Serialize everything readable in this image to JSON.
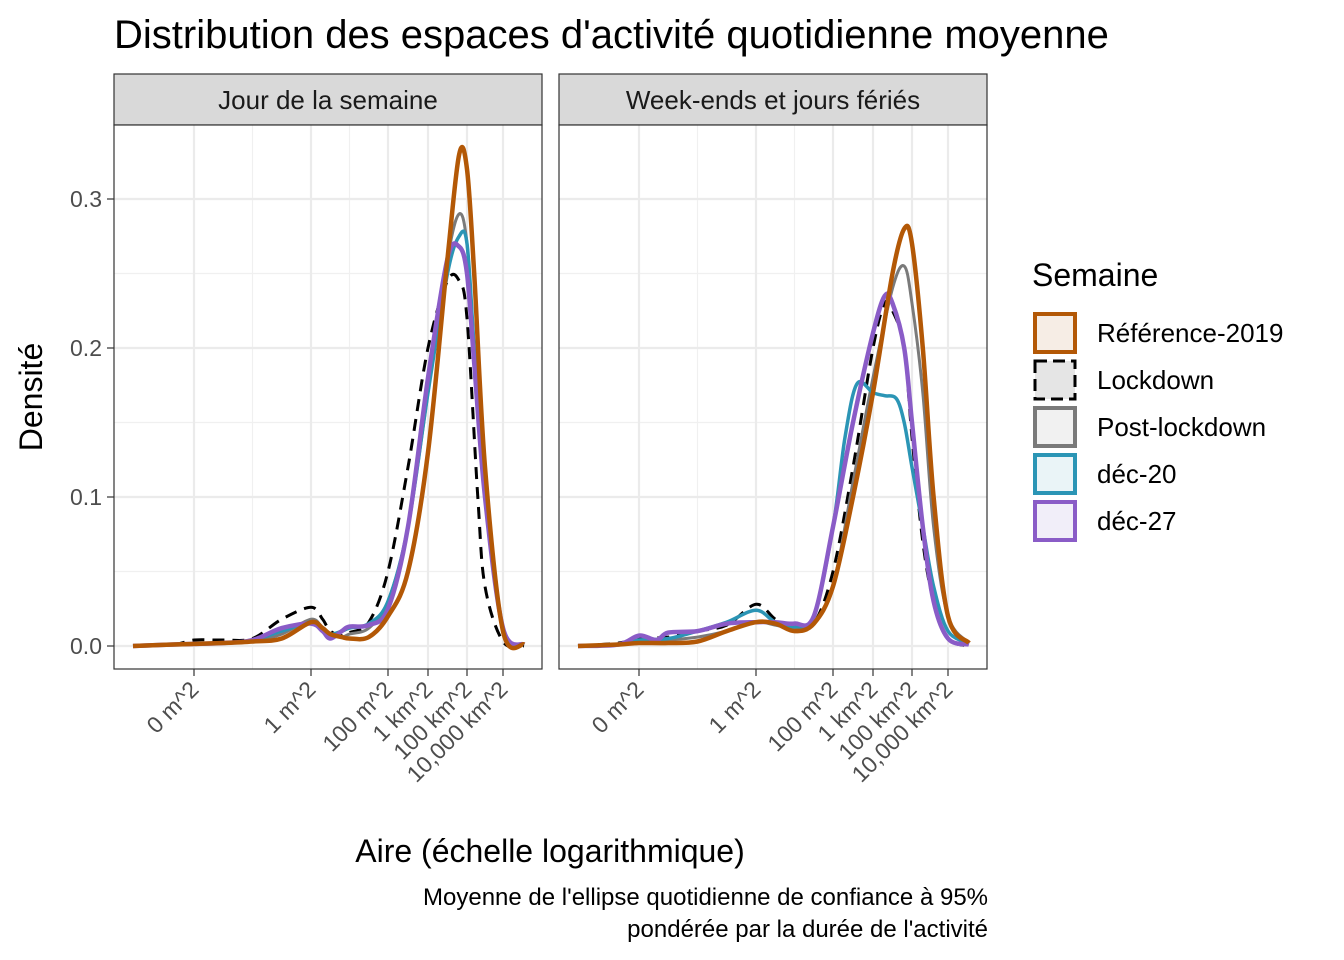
{
  "title": "Distribution des espaces d'activité quotidienne moyenne",
  "xlabel": "Aire (échelle logarithmique)",
  "ylabel": "Densité",
  "caption": [
    "Moyenne de l'ellipse quotidienne de confiance à 95%",
    "pondérée par la durée de l'activité"
  ],
  "legend_title": "Semaine",
  "colors": {
    "Référence-2019": "#b35806",
    "Lockdown": "#000000",
    "Post-lockdown": "#7a7a7a",
    "déc-20": "#2b95b5",
    "déc-27": "#8a5cc7"
  },
  "chart_data": {
    "type": "line",
    "x_scale": "log10",
    "x_unit": "m^2",
    "xlim_log10": [
      -3.5,
      8.2
    ],
    "ylim": [
      0,
      0.35
    ],
    "grid": true,
    "legend_position": "right",
    "x_ticks": [
      {
        "value_log10": -2,
        "label": "0 m^2"
      },
      {
        "value_log10": 0,
        "label": "1 m^2"
      },
      {
        "value_log10": 2,
        "label": "100 m^2"
      },
      {
        "value_log10": 3,
        "label": "1 km^2"
      },
      {
        "value_log10": 4,
        "label": "100 km^2"
      },
      {
        "value_log10": 5,
        "label": "10,000 km^2"
      }
    ],
    "y_ticks": [
      0.0,
      0.1,
      0.2,
      0.3
    ],
    "y_tick_labels": [
      "0.0",
      "0.1",
      "0.2",
      "0.3"
    ],
    "x_tick_positions": [
      -2,
      0,
      2,
      3,
      4,
      5
    ],
    "panels": [
      {
        "label": "Jour de la semaine",
        "series": [
          {
            "name": "Référence-2019",
            "dash": false,
            "width": 4.5,
            "x": [
              -3.5,
              -2.5,
              -1.5,
              -1,
              -0.5,
              0,
              0.3,
              0.5,
              0.8,
              1,
              1.5,
              2,
              2.5,
              3,
              3.5,
              3.8,
              4,
              4.2,
              4.5,
              5,
              5.3
            ],
            "y": [
              0,
              0.001,
              0.002,
              0.003,
              0.005,
              0.016,
              0.012,
              0.008,
              0.006,
              0.005,
              0.006,
              0.02,
              0.05,
              0.13,
              0.26,
              0.33,
              0.32,
              0.25,
              0.12,
              0.01,
              0.001
            ]
          },
          {
            "name": "Lockdown",
            "dash": true,
            "width": 3,
            "x": [
              -3.5,
              -2.5,
              -2,
              -1.5,
              -1,
              -0.5,
              0,
              0.3,
              0.5,
              0.8,
              1,
              1.5,
              2,
              2.5,
              3,
              3.5,
              3.8,
              4,
              4.3,
              4.5,
              5,
              5.3
            ],
            "y": [
              0,
              0.001,
              0.004,
              0.004,
              0.005,
              0.018,
              0.026,
              0.018,
              0.01,
              0.007,
              0.009,
              0.016,
              0.05,
              0.12,
              0.2,
              0.245,
              0.245,
              0.22,
              0.1,
              0.04,
              0.003,
              0
            ]
          },
          {
            "name": "Post-lockdown",
            "dash": false,
            "width": 3,
            "x": [
              -3.5,
              -2.5,
              -1.5,
              -1,
              -0.5,
              0,
              0.3,
              0.5,
              0.8,
              1,
              1.5,
              2,
              2.5,
              3,
              3.5,
              3.8,
              4,
              4.2,
              4.5,
              5,
              5.3
            ],
            "y": [
              0,
              0.001,
              0.002,
              0.003,
              0.008,
              0.018,
              0.012,
              0.008,
              0.006,
              0.008,
              0.012,
              0.03,
              0.08,
              0.17,
              0.26,
              0.29,
              0.27,
              0.2,
              0.1,
              0.01,
              0.001
            ]
          },
          {
            "name": "déc-20",
            "dash": false,
            "width": 3.5,
            "x": [
              -3.5,
              -2.5,
              -1.5,
              -1,
              -0.5,
              0,
              0.3,
              0.5,
              0.8,
              1,
              1.5,
              2,
              2.5,
              3,
              3.5,
              3.8,
              4,
              4.2,
              4.5,
              5,
              5.3
            ],
            "y": [
              0,
              0.001,
              0.002,
              0.004,
              0.01,
              0.016,
              0.012,
              0.008,
              0.01,
              0.012,
              0.015,
              0.03,
              0.08,
              0.17,
              0.25,
              0.275,
              0.27,
              0.2,
              0.1,
              0.012,
              0.001
            ]
          },
          {
            "name": "déc-27",
            "dash": false,
            "width": 4.5,
            "x": [
              -3.5,
              -2.5,
              -1.5,
              -1,
              -0.5,
              0,
              0.3,
              0.5,
              0.8,
              1,
              1.5,
              2,
              2.5,
              3,
              3.5,
              3.8,
              4,
              4.2,
              4.5,
              5,
              5.3
            ],
            "y": [
              0,
              0.001,
              0.002,
              0.004,
              0.012,
              0.015,
              0.01,
              0.005,
              0.01,
              0.013,
              0.014,
              0.025,
              0.08,
              0.18,
              0.26,
              0.268,
              0.25,
              0.19,
              0.1,
              0.012,
              0.001
            ]
          }
        ]
      },
      {
        "label": "Week-ends et jours fériés",
        "series": [
          {
            "name": "Référence-2019",
            "dash": false,
            "width": 4.5,
            "x": [
              -3.5,
              -2.5,
              -2,
              -1.5,
              -1,
              -0.5,
              0,
              0.5,
              1,
              1.5,
              2,
              2.5,
              3,
              3.5,
              3.8,
              4,
              4.3,
              4.6,
              5,
              5.3
            ],
            "y": [
              0,
              0.001,
              0.002,
              0.002,
              0.003,
              0.01,
              0.016,
              0.015,
              0.01,
              0.015,
              0.04,
              0.1,
              0.17,
              0.25,
              0.28,
              0.27,
              0.2,
              0.1,
              0.02,
              0.002
            ]
          },
          {
            "name": "Lockdown",
            "dash": true,
            "width": 3,
            "x": [
              -3.5,
              -2.5,
              -2,
              -1.5,
              -1,
              -0.5,
              0,
              0.5,
              1,
              1.5,
              2,
              2.5,
              3,
              3.3,
              3.5,
              3.8,
              4,
              4.3,
              4.6,
              5,
              5.3
            ],
            "y": [
              0,
              0.002,
              0.005,
              0.006,
              0.01,
              0.014,
              0.028,
              0.018,
              0.012,
              0.015,
              0.05,
              0.12,
              0.2,
              0.23,
              0.225,
              0.2,
              0.14,
              0.07,
              0.03,
              0.005,
              0
            ]
          },
          {
            "name": "Post-lockdown",
            "dash": false,
            "width": 3,
            "x": [
              -3.5,
              -2.5,
              -2,
              -1.5,
              -1,
              -0.5,
              0,
              0.5,
              1,
              1.5,
              2,
              2.5,
              3,
              3.5,
              3.8,
              4,
              4.3,
              4.6,
              5,
              5.3
            ],
            "y": [
              0,
              0.001,
              0.003,
              0.004,
              0.006,
              0.01,
              0.016,
              0.014,
              0.012,
              0.015,
              0.04,
              0.11,
              0.18,
              0.24,
              0.255,
              0.23,
              0.17,
              0.08,
              0.02,
              0.002
            ]
          },
          {
            "name": "déc-20",
            "dash": false,
            "width": 3.5,
            "x": [
              -3.5,
              -2.5,
              -2,
              -1.5,
              -1,
              -0.5,
              0,
              0.5,
              1,
              1.5,
              2,
              2.3,
              2.6,
              3,
              3.3,
              3.6,
              3.8,
              4,
              4.3,
              4.6,
              5,
              5.3
            ],
            "y": [
              0,
              0.001,
              0.004,
              0.005,
              0.01,
              0.016,
              0.024,
              0.016,
              0.013,
              0.02,
              0.08,
              0.14,
              0.176,
              0.17,
              0.168,
              0.166,
              0.15,
              0.12,
              0.08,
              0.04,
              0.01,
              0.002
            ]
          },
          {
            "name": "déc-27",
            "dash": false,
            "width": 4.5,
            "x": [
              -3.5,
              -2.5,
              -2,
              -1.7,
              -1.5,
              -1,
              -0.5,
              0,
              0.5,
              1,
              1.5,
              2,
              2.5,
              3,
              3.3,
              3.5,
              3.8,
              4,
              4.3,
              4.6,
              5,
              5.3
            ],
            "y": [
              0,
              0.001,
              0.007,
              0.004,
              0.009,
              0.01,
              0.015,
              0.016,
              0.016,
              0.015,
              0.02,
              0.08,
              0.15,
              0.21,
              0.235,
              0.23,
              0.2,
              0.15,
              0.08,
              0.03,
              0.005,
              0.001
            ]
          }
        ]
      }
    ]
  }
}
